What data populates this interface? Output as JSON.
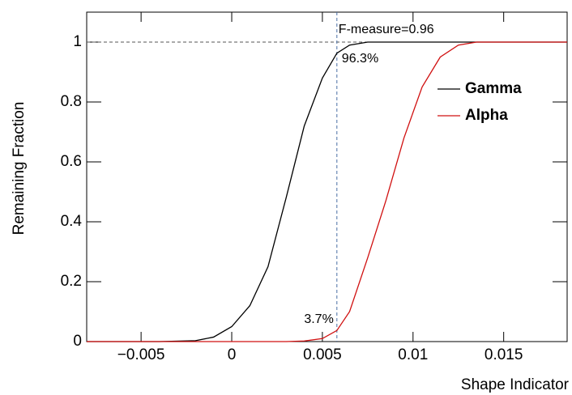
{
  "chart_data": {
    "type": "line",
    "x_label": "Shape Indicator",
    "y_label": "Remaining Fraction",
    "x": [
      -0.008,
      -0.004,
      -0.002,
      -0.001,
      0,
      0.001,
      0.002,
      0.003,
      0.004,
      0.005,
      0.0058,
      0.0065,
      0.0075,
      0.0085,
      0.0095,
      0.0105,
      0.0115,
      0.0125,
      0.0135,
      0.0185
    ],
    "series": [
      {
        "name": "Gamma",
        "color": "#000000",
        "values": [
          0,
          0,
          0.003,
          0.015,
          0.05,
          0.12,
          0.25,
          0.48,
          0.72,
          0.88,
          0.963,
          0.99,
          1,
          1,
          1,
          1,
          1,
          1,
          1,
          1
        ]
      },
      {
        "name": "Alpha",
        "color": "#d01010",
        "values": [
          0,
          0,
          0,
          0,
          0,
          0,
          0,
          0,
          0.002,
          0.01,
          0.037,
          0.1,
          0.28,
          0.47,
          0.68,
          0.85,
          0.95,
          0.99,
          1,
          1
        ]
      }
    ],
    "xlim": [
      -0.008,
      0.0185
    ],
    "ylim": [
      0,
      1.1
    ],
    "xticks": [
      {
        "value": -0.005,
        "label": "−0.005"
      },
      0,
      0.005,
      0.01,
      0.015
    ],
    "yticks": [
      0,
      0.2,
      0.4,
      0.6,
      0.8,
      1
    ],
    "cut_x": 0.0058,
    "reference_y": 1,
    "annotations": [
      "F-measure=0.96",
      "96.3%",
      "3.7%"
    ],
    "legend": "upper right",
    "grid": false
  }
}
